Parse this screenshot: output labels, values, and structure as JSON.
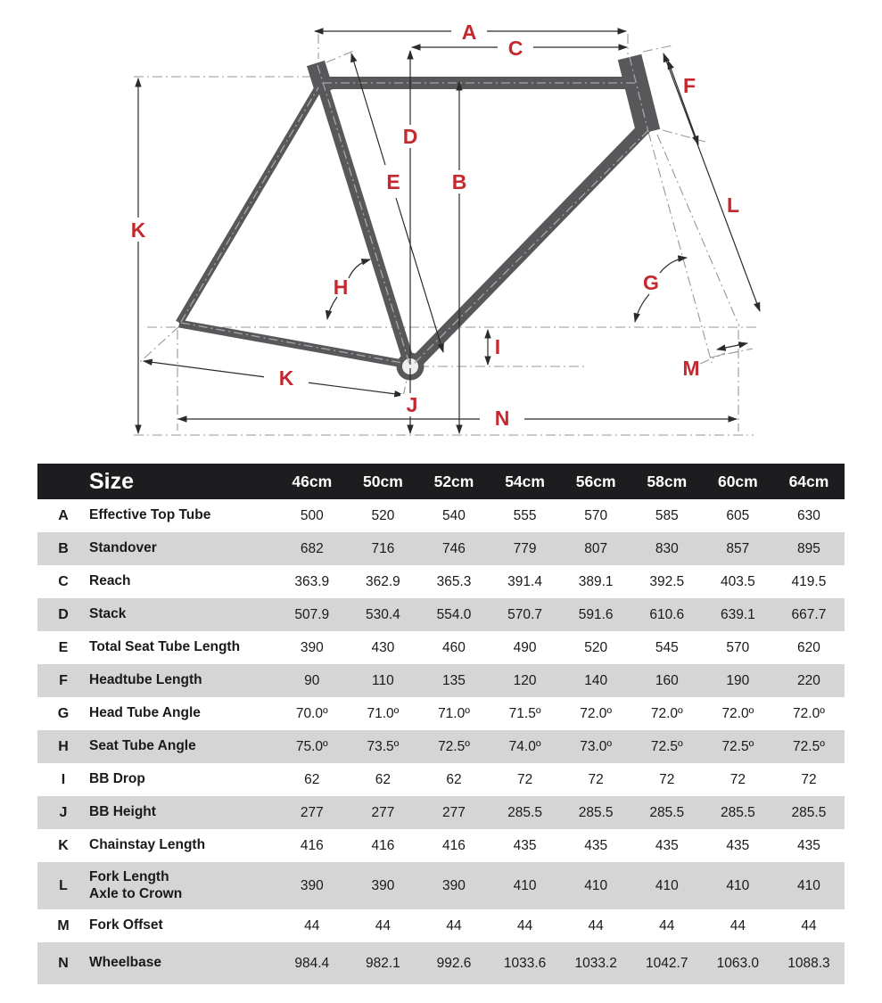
{
  "diagram": {
    "labels": {
      "a": "A",
      "c": "C",
      "d": "D",
      "b": "B",
      "e": "E",
      "f": "F",
      "k_left": "K",
      "l": "L",
      "h": "H",
      "g": "G",
      "i": "I",
      "k": "K",
      "m": "M",
      "j": "J",
      "n": "N"
    },
    "colors": {
      "accent_red": "#c5282f",
      "frame_gray": "#58585b",
      "dimension_line": "#2b2b2b",
      "reference_line": "#97979a"
    }
  },
  "table": {
    "colors": {
      "header_bg": "#1d1d1f",
      "row_alt": "#d5d5d6"
    },
    "header": {
      "size_label": "Size",
      "columns": [
        "46cm",
        "50cm",
        "52cm",
        "54cm",
        "56cm",
        "58cm",
        "60cm",
        "64cm"
      ]
    },
    "rows": [
      {
        "letter": "A",
        "label": "Effective Top Tube",
        "values": [
          "500",
          "520",
          "540",
          "555",
          "570",
          "585",
          "605",
          "630"
        ]
      },
      {
        "letter": "B",
        "label": "Standover",
        "values": [
          "682",
          "716",
          "746",
          "779",
          "807",
          "830",
          "857",
          "895"
        ]
      },
      {
        "letter": "C",
        "label": "Reach",
        "values": [
          "363.9",
          "362.9",
          "365.3",
          "391.4",
          "389.1",
          "392.5",
          "403.5",
          "419.5"
        ]
      },
      {
        "letter": "D",
        "label": "Stack",
        "values": [
          "507.9",
          "530.4",
          "554.0",
          "570.7",
          "591.6",
          "610.6",
          "639.1",
          "667.7"
        ]
      },
      {
        "letter": "E",
        "label": "Total Seat Tube Length",
        "values": [
          "390",
          "430",
          "460",
          "490",
          "520",
          "545",
          "570",
          "620"
        ]
      },
      {
        "letter": "F",
        "label": "Headtube Length",
        "values": [
          "90",
          "110",
          "135",
          "120",
          "140",
          "160",
          "190",
          "220"
        ]
      },
      {
        "letter": "G",
        "label": "Head Tube Angle",
        "values": [
          "70.0º",
          "71.0º",
          "71.0º",
          "71.5º",
          "72.0º",
          "72.0º",
          "72.0º",
          "72.0º"
        ]
      },
      {
        "letter": "H",
        "label": "Seat Tube Angle",
        "values": [
          "75.0º",
          "73.5º",
          "72.5º",
          "74.0º",
          "73.0º",
          "72.5º",
          "72.5º",
          "72.5º"
        ]
      },
      {
        "letter": "I",
        "label": "BB Drop",
        "values": [
          "62",
          "62",
          "62",
          "72",
          "72",
          "72",
          "72",
          "72"
        ]
      },
      {
        "letter": "J",
        "label": "BB Height",
        "values": [
          "277",
          "277",
          "277",
          "285.5",
          "285.5",
          "285.5",
          "285.5",
          "285.5"
        ]
      },
      {
        "letter": "K",
        "label": "Chainstay Length",
        "values": [
          "416",
          "416",
          "416",
          "435",
          "435",
          "435",
          "435",
          "435"
        ]
      },
      {
        "letter": "L",
        "label": "Fork Length",
        "label2": "Axle to Crown",
        "values": [
          "390",
          "390",
          "390",
          "410",
          "410",
          "410",
          "410",
          "410"
        ]
      },
      {
        "letter": "M",
        "label": "Fork Offset",
        "values": [
          "44",
          "44",
          "44",
          "44",
          "44",
          "44",
          "44",
          "44"
        ]
      },
      {
        "letter": "N",
        "label": "Wheelbase",
        "values": [
          "984.4",
          "982.1",
          "992.6",
          "1033.6",
          "1033.2",
          "1042.7",
          "1063.0",
          "1088.3"
        ]
      }
    ]
  }
}
